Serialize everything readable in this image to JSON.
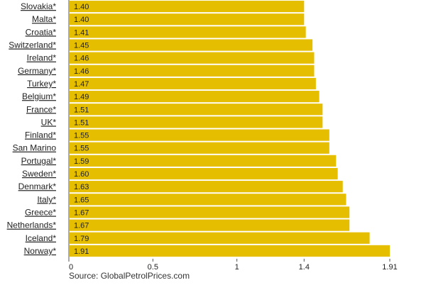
{
  "chart_data": {
    "type": "bar",
    "orientation": "horizontal",
    "categories": [
      "Slovakia*",
      "Malta*",
      "Croatia*",
      "Switzerland*",
      "Ireland*",
      "Germany*",
      "Turkey*",
      "Belgium*",
      "France*",
      "UK*",
      "Finland*",
      "San Marino",
      "Portugal*",
      "Sweden*",
      "Denmark*",
      "Italy*",
      "Greece*",
      "Netherlands*",
      "Iceland*",
      "Norway*"
    ],
    "values": [
      1.4,
      1.4,
      1.41,
      1.45,
      1.46,
      1.46,
      1.47,
      1.49,
      1.51,
      1.51,
      1.55,
      1.55,
      1.59,
      1.6,
      1.63,
      1.65,
      1.67,
      1.67,
      1.79,
      1.91
    ],
    "value_labels": [
      "1.40",
      "1.40",
      "1.41",
      "1.45",
      "1.46",
      "1.46",
      "1.47",
      "1.49",
      "1.51",
      "1.51",
      "1.55",
      "1.55",
      "1.59",
      "1.60",
      "1.63",
      "1.65",
      "1.67",
      "1.67",
      "1.79",
      "1.91"
    ],
    "xticks": [
      0,
      0.5,
      1,
      1.4,
      1.91
    ],
    "xtick_labels": [
      "0",
      "0.5",
      "1",
      "1.4",
      "1.91"
    ],
    "xlim": [
      0,
      1.91
    ],
    "bar_color": "#E6BE00",
    "background_color": "#ffffff",
    "grid": false
  },
  "source": "Source: GlobalPetrolPrices.com"
}
